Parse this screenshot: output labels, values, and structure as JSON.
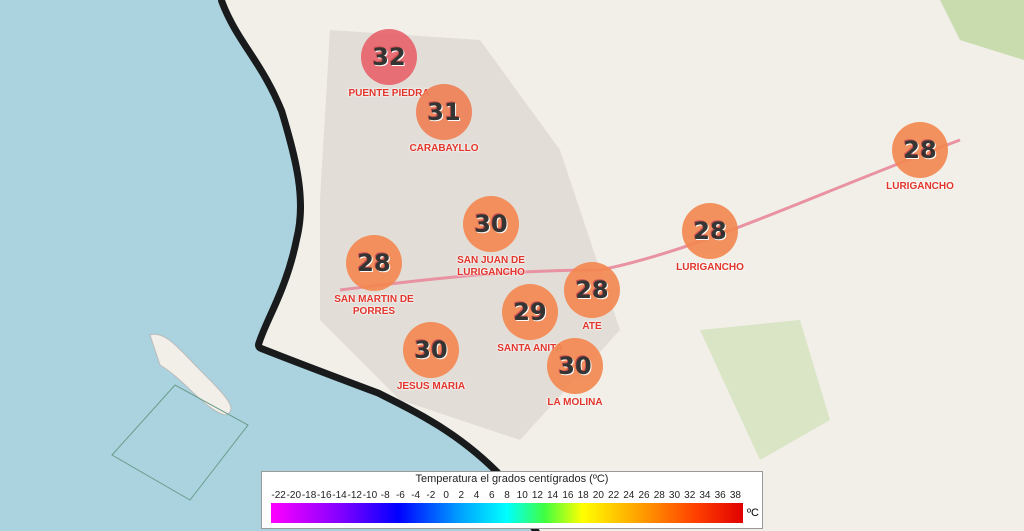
{
  "markers": [
    {
      "value": 32,
      "label": "PUENTE PIEDRA",
      "color": "#e8636b"
    },
    {
      "value": 31,
      "label": "CARABAYLLO",
      "color": "#f07f55"
    },
    {
      "value": 30,
      "label": "SAN JUAN DE LURIGANCHO",
      "color": "#f4874f"
    },
    {
      "value": 28,
      "label": "SAN MARTIN DE PORRES",
      "color": "#f4874f"
    },
    {
      "value": 29,
      "label": "SANTA ANITA",
      "color": "#f4874f"
    },
    {
      "value": 28,
      "label": "ATE",
      "color": "#f4874f"
    },
    {
      "value": 30,
      "label": "JESUS MARIA",
      "color": "#f4874f"
    },
    {
      "value": 30,
      "label": "LA MOLINA",
      "color": "#f4874f"
    },
    {
      "value": 28,
      "label": "LURIGANCHO",
      "color": "#f4874f"
    },
    {
      "value": 28,
      "label": "LURIGANCHO",
      "color": "#f4874f"
    }
  ],
  "legend": {
    "title": "Temperatura el grados centígrados (ºC)",
    "ticks": [
      -22,
      -20,
      -18,
      -16,
      -14,
      -12,
      -10,
      -8,
      -6,
      -4,
      -2,
      0,
      2,
      4,
      6,
      8,
      10,
      12,
      14,
      16,
      18,
      20,
      22,
      24,
      26,
      28,
      30,
      32,
      34,
      36,
      38
    ],
    "unit": "ºC"
  }
}
